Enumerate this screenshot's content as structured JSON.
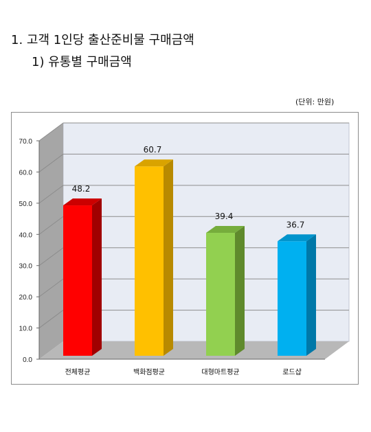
{
  "heading": {
    "title": "1. 고객 1인당 출산준비물 구매금액",
    "subtitle": "1) 유통별 구매금액"
  },
  "unit_label": "(단위: 만원)",
  "chart_data": {
    "type": "bar",
    "categories": [
      "전체평균",
      "백화점평균",
      "대형마트평균",
      "로드샵"
    ],
    "values": [
      48.2,
      60.7,
      39.4,
      36.7
    ],
    "data_labels": [
      "48.2",
      "60.7",
      "39.4",
      "36.7"
    ],
    "ylim": [
      0,
      70
    ],
    "yticks": [
      "0.0",
      "10.0",
      "20.0",
      "30.0",
      "40.0",
      "50.0",
      "60.0",
      "70.0"
    ],
    "grid": true,
    "legend": "none",
    "colors": {
      "bars": [
        "#ff0000",
        "#ffc000",
        "#92d050",
        "#00b0f0"
      ],
      "bar_sides": [
        "#a00000",
        "#b88a00",
        "#5f8a2c",
        "#0078a8"
      ],
      "bar_tops": [
        "#cc0000",
        "#d9a300",
        "#76ad3c",
        "#0094cc"
      ],
      "wall": "#e8ecf4",
      "side_wall": "#a6a6a6",
      "floor": "#b8b8b8",
      "grid": "#8c8c8c"
    }
  }
}
